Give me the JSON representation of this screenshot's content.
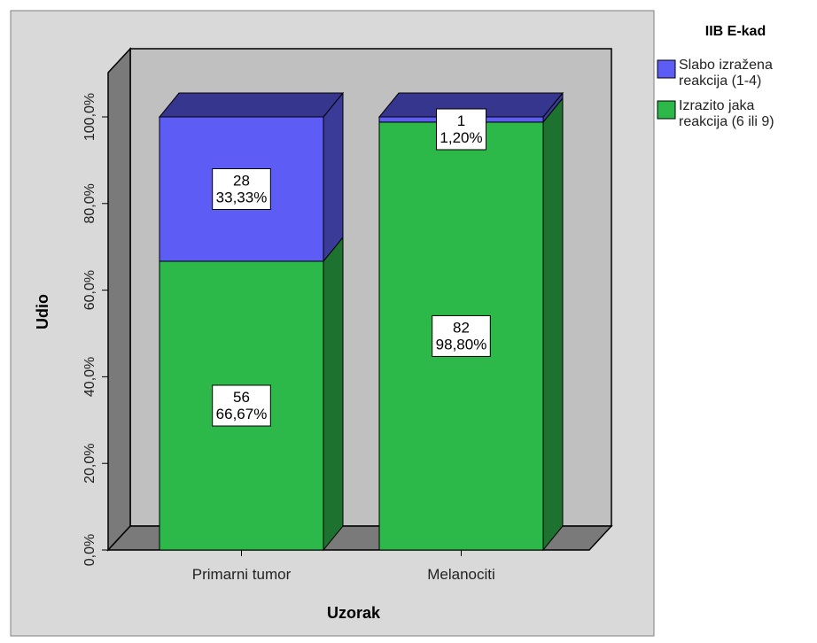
{
  "chart_data": {
    "type": "bar",
    "stacked": true,
    "percent_stacked": true,
    "three_d": true,
    "categories": [
      "Primarni tumor",
      "Melanociti"
    ],
    "series": [
      {
        "name": "Izrazito jaka reakcija (6 ili 9)",
        "counts": [
          56,
          82
        ],
        "values": [
          66.67,
          98.8
        ],
        "labels": [
          "56\n66,67%",
          "82\n98,80%"
        ],
        "color": "#2db84a"
      },
      {
        "name": "Slabo izražena reakcija (1-4)",
        "counts": [
          28,
          1
        ],
        "values": [
          33.33,
          1.2
        ],
        "labels": [
          "28\n33,33%",
          "1\n1,20%"
        ],
        "color": "#5d5df6"
      }
    ],
    "xlabel": "Uzorak",
    "ylabel": "Udio",
    "ylim": [
      0,
      100
    ],
    "yticks": [
      0,
      20,
      40,
      60,
      80,
      100
    ],
    "ytick_labels": [
      "0,0%",
      "20,0%",
      "40,0%",
      "60,0%",
      "80,0%",
      "100,0%"
    ],
    "legend": {
      "title": "IIB E-kad",
      "placement": "top-right",
      "entries": [
        {
          "lines": [
            "Slabo izražena",
            "reakcija (1-4)"
          ],
          "color": "#5d5df6"
        },
        {
          "lines": [
            "Izrazito jaka",
            "reakcija (6 ili 9)"
          ],
          "color": "#2db84a"
        }
      ]
    },
    "colors": {
      "wall": "#c0c0c0",
      "side_wall": "#7a7a7a",
      "floor": "#7a7a7a",
      "frame": "#d9d9d9",
      "plot_bg": "#ffffff"
    }
  }
}
